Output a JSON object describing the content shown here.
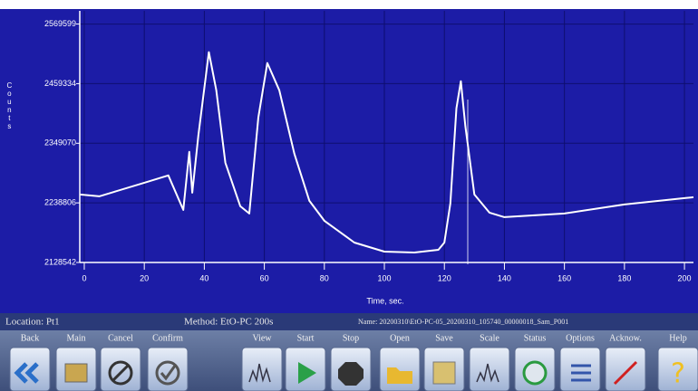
{
  "chart_data": {
    "type": "line",
    "xlabel": "Time, sec.",
    "ylabel": "Counts",
    "x": [
      -1.5,
      5,
      10,
      20,
      28,
      33,
      35,
      36,
      38,
      41.5,
      44,
      47,
      52,
      55,
      58,
      61,
      65,
      70,
      75,
      80,
      90,
      100,
      110,
      118,
      120,
      122,
      124,
      125.5,
      127,
      130,
      135,
      140,
      150,
      160,
      180,
      200,
      203
    ],
    "values": [
      2254320,
      2250960,
      2259350,
      2276120,
      2289530,
      2225810,
      2333140,
      2257670,
      2363320,
      2517600,
      2447170,
      2313010,
      2232520,
      2219100,
      2396860,
      2497480,
      2447170,
      2329780,
      2242580,
      2205680,
      2165440,
      2148670,
      2146990,
      2152020,
      2165440,
      2237550,
      2413630,
      2463940,
      2380090,
      2254310,
      2220780,
      2212390,
      2215740,
      2219100,
      2235870,
      2247610,
      2249290
    ],
    "color": "#ffffff",
    "xlim": [
      -1.5,
      203
    ],
    "xticks": [
      0,
      20,
      40,
      60,
      80,
      100,
      120,
      140,
      160,
      180,
      200
    ],
    "ylim": [
      2128542,
      2594000
    ],
    "yticks": [
      2128542,
      2238806,
      2349070,
      2459334,
      2569599
    ],
    "grid": true
  },
  "status_bar": {
    "location": "Location: Pt1",
    "method": "Method: EtO-PC 200s",
    "name": "Name: 20200310\\EtO-PC-05_20200310_105740_00000018_Sam_P001"
  },
  "toolbar": {
    "buttons": [
      "Back",
      "Main",
      "Cancel",
      "Confirm",
      "View",
      "Start",
      "Stop",
      "Open",
      "Save",
      "Scale",
      "Status",
      "Options",
      "Acknow.",
      "Help"
    ]
  }
}
